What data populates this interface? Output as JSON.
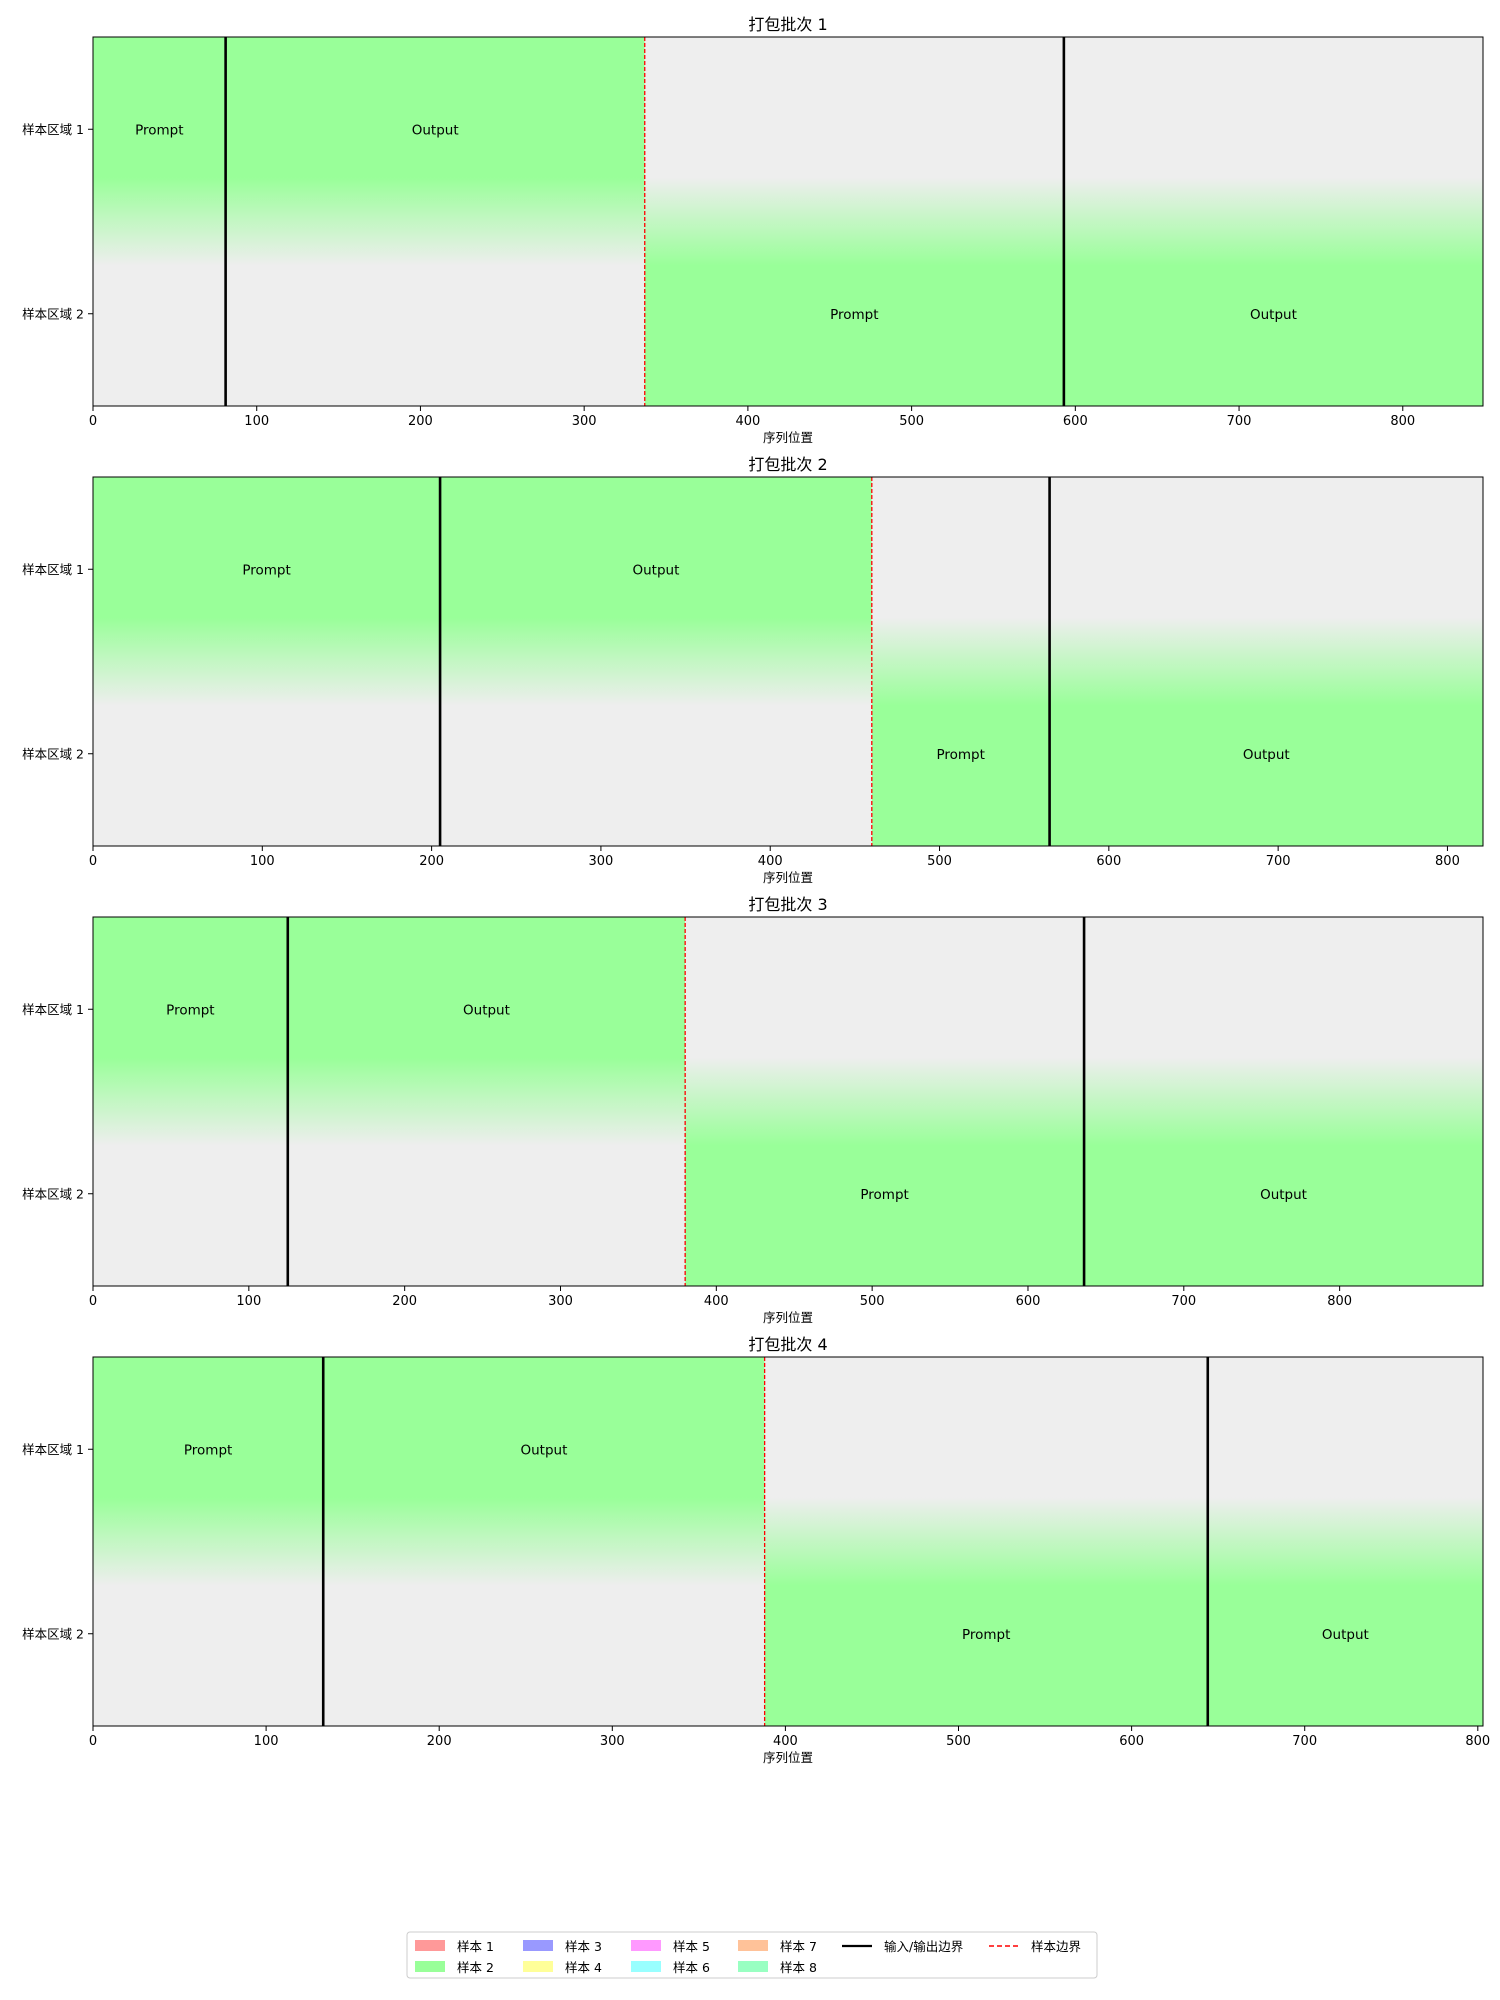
{
  "chart_data": {
    "type": "packing-timeline",
    "xlabel": "序列位置",
    "ylabels": [
      "样本区域 1",
      "样本区域 2"
    ],
    "segment_labels": {
      "prompt": "Prompt",
      "output": "Output"
    },
    "colors": {
      "sample_fill": "#99ff99",
      "background": "#eeeeee",
      "io_boundary": "#000000",
      "sample_boundary": "#ff0000"
    },
    "panels": [
      {
        "title": "打包批次 1",
        "xlim": [
          0,
          849
        ],
        "xticks": [
          0,
          100,
          200,
          300,
          400,
          500,
          600,
          700,
          800
        ],
        "samples": [
          {
            "region": 1,
            "start": 0,
            "io_boundary": 81,
            "end": 337
          },
          {
            "region": 2,
            "start": 337,
            "io_boundary": 593,
            "end": 849
          }
        ]
      },
      {
        "title": "打包批次 2",
        "xlim": [
          0,
          821
        ],
        "xticks": [
          0,
          100,
          200,
          300,
          400,
          500,
          600,
          700,
          800
        ],
        "samples": [
          {
            "region": 1,
            "start": 0,
            "io_boundary": 205,
            "end": 460
          },
          {
            "region": 2,
            "start": 460,
            "io_boundary": 565,
            "end": 821
          }
        ]
      },
      {
        "title": "打包批次 3",
        "xlim": [
          0,
          892
        ],
        "xticks": [
          0,
          100,
          200,
          300,
          400,
          500,
          600,
          700,
          800
        ],
        "samples": [
          {
            "region": 1,
            "start": 0,
            "io_boundary": 125,
            "end": 380
          },
          {
            "region": 2,
            "start": 380,
            "io_boundary": 636,
            "end": 892
          }
        ]
      },
      {
        "title": "打包批次 4",
        "xlim": [
          0,
          803
        ],
        "xticks": [
          0,
          100,
          200,
          300,
          400,
          500,
          600,
          700,
          800
        ],
        "samples": [
          {
            "region": 1,
            "start": 0,
            "io_boundary": 133,
            "end": 388
          },
          {
            "region": 2,
            "start": 388,
            "io_boundary": 644,
            "end": 803
          }
        ]
      }
    ],
    "legend": {
      "placement": "bottom-center",
      "entries": [
        {
          "label": "样本 1",
          "kind": "patch",
          "color": "#ff9999"
        },
        {
          "label": "样本 2",
          "kind": "patch",
          "color": "#99ff99"
        },
        {
          "label": "样本 3",
          "kind": "patch",
          "color": "#9999ff"
        },
        {
          "label": "样本 4",
          "kind": "patch",
          "color": "#ffff99"
        },
        {
          "label": "样本 5",
          "kind": "patch",
          "color": "#ff99ff"
        },
        {
          "label": "样本 6",
          "kind": "patch",
          "color": "#99ffff"
        },
        {
          "label": "样本 7",
          "kind": "patch",
          "color": "#ffc299"
        },
        {
          "label": "样本 8",
          "kind": "patch",
          "color": "#99ffc2"
        },
        {
          "label": "输入/输出边界",
          "kind": "solid-line",
          "color": "#000000"
        },
        {
          "label": "样本边界",
          "kind": "dashed-line",
          "color": "#ff0000"
        }
      ]
    }
  }
}
